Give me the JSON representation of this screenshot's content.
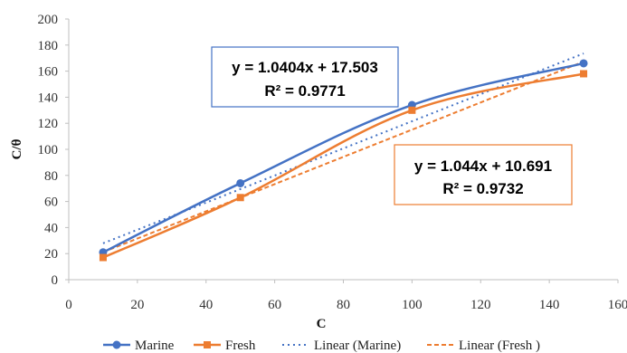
{
  "chart_data": {
    "type": "line",
    "xlabel": "C",
    "ylabel": "C/θ",
    "xlim": [
      0,
      160
    ],
    "ylim": [
      0,
      200
    ],
    "x_ticks": [
      "0",
      "20",
      "40",
      "60",
      "80",
      "100",
      "120",
      "140",
      "160"
    ],
    "y_ticks": [
      "0",
      "20",
      "40",
      "60",
      "80",
      "100",
      "120",
      "140",
      "160",
      "180",
      "200"
    ],
    "grid": false,
    "legend_position": "bottom",
    "series": [
      {
        "name": "Marine",
        "color": "#4472C4",
        "marker": "circle",
        "smooth": true,
        "points": [
          [
            10,
            21
          ],
          [
            50,
            74
          ],
          [
            100,
            134
          ],
          [
            150,
            166
          ]
        ]
      },
      {
        "name": "Fresh",
        "color": "#ED7D31",
        "marker": "square",
        "smooth": true,
        "points": [
          [
            10,
            17
          ],
          [
            50,
            63
          ],
          [
            100,
            130
          ],
          [
            150,
            158
          ]
        ]
      }
    ],
    "trendlines": [
      {
        "name": "Linear (Marine)",
        "color": "#4472C4",
        "slope": 1.0404,
        "intercept": 17.503,
        "x_range": [
          10,
          150
        ],
        "equation": "y = 1.0404x + 17.503",
        "r2": "R² = 0.9771",
        "box_border": "#4472C4"
      },
      {
        "name": "Linear (Fresh )",
        "color": "#ED7D31",
        "slope": 1.044,
        "intercept": 10.691,
        "x_range": [
          10,
          150
        ],
        "equation": "y = 1.044x + 10.691",
        "r2": "R² = 0.9732",
        "box_border": "#ED7D31"
      }
    ],
    "legend": [
      {
        "label": "Marine",
        "color": "#4472C4",
        "style": "line-circle"
      },
      {
        "label": "Fresh",
        "color": "#ED7D31",
        "style": "line-square"
      },
      {
        "label": "Linear (Marine)",
        "color": "#4472C4",
        "style": "dotted"
      },
      {
        "label": "Linear (Fresh )",
        "color": "#ED7D31",
        "style": "dashed"
      }
    ]
  }
}
